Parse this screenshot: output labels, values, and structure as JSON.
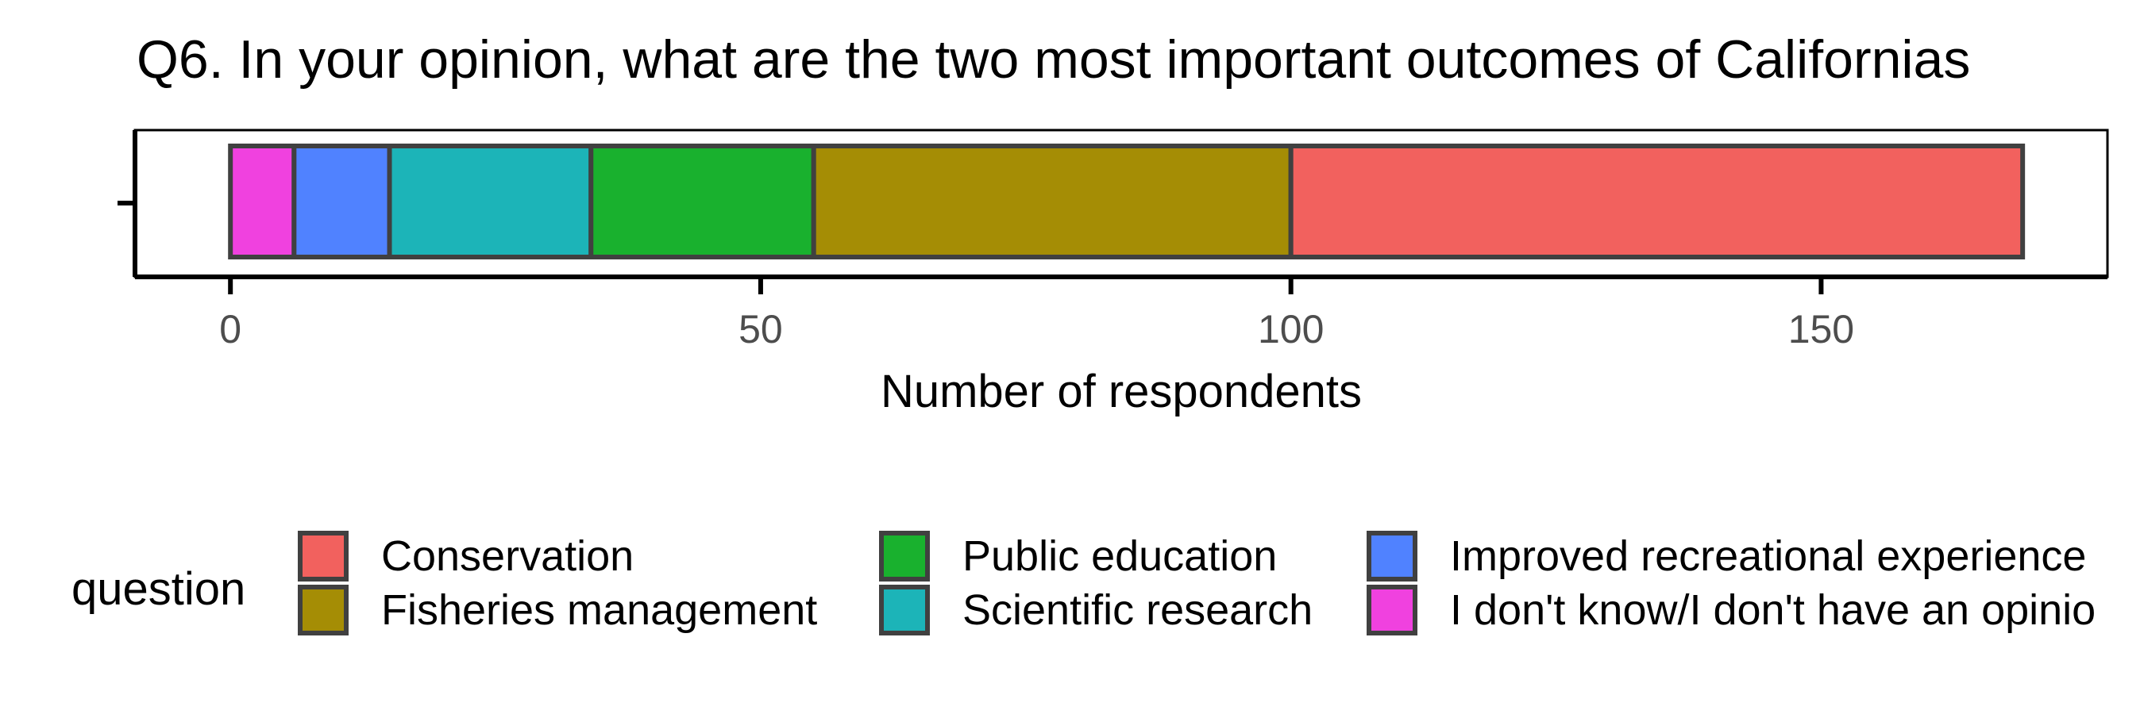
{
  "chart_data": {
    "type": "bar",
    "orientation": "horizontal",
    "stacked": true,
    "title": "Q6. In your opinion, what are the two most important outcomes of Californias",
    "xlabel": "Number of respondents",
    "ylabel": "",
    "xlim": [
      -9,
      177
    ],
    "x_ticks": [
      0,
      50,
      100,
      150
    ],
    "grid": false,
    "legend_position": "bottom",
    "legend_title": "question",
    "categories": [
      ""
    ],
    "series": [
      {
        "name": "I don't know/I don't have an opinion",
        "values": [
          6
        ],
        "color": "#F041DF"
      },
      {
        "name": "Improved recreational experience",
        "values": [
          9
        ],
        "color": "#5082FF"
      },
      {
        "name": "Scientific research",
        "values": [
          19
        ],
        "color": "#1CB4B8"
      },
      {
        "name": "Public education",
        "values": [
          21
        ],
        "color": "#19B12E"
      },
      {
        "name": "Fisheries management",
        "values": [
          45
        ],
        "color": "#A58D05"
      },
      {
        "name": "Conservation",
        "values": [
          69
        ],
        "color": "#F2615E"
      }
    ],
    "legend_entries": [
      {
        "label": "Conservation",
        "color": "#F2615E"
      },
      {
        "label": "Fisheries management",
        "color": "#A58D05"
      },
      {
        "label": "Public education",
        "color": "#19B12E"
      },
      {
        "label": "Scientific research",
        "color": "#1CB4B8"
      },
      {
        "label": "Improved recreational experience",
        "color": "#5082FF"
      },
      {
        "label": "I don't know/I don't have an opinio",
        "color": "#F041DF"
      }
    ],
    "bar_outline_color": "#404040"
  }
}
